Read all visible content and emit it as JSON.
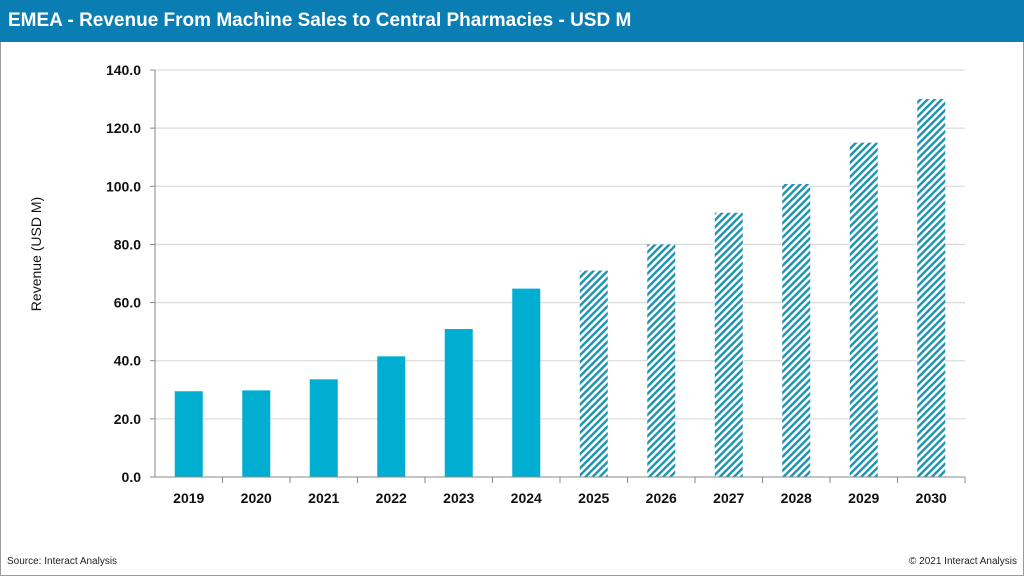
{
  "header": {
    "title": "EMEA - Revenue From Machine Sales to Central Pharmacies - USD M"
  },
  "footer": {
    "source": "Source: Interact Analysis",
    "copyright": "© 2021 Interact Analysis"
  },
  "colors": {
    "header": "#0a7db3",
    "bar": "#00aed2",
    "hatch": "#1a93b0"
  },
  "chart_data": {
    "type": "bar",
    "title": "EMEA - Revenue From Machine Sales to Central Pharmacies - USD M",
    "xlabel": "",
    "ylabel": "Revenue (USD M)",
    "ylim": [
      0,
      140
    ],
    "yticks": [
      "0.0",
      "20.0",
      "40.0",
      "60.0",
      "80.0",
      "100.0",
      "120.0",
      "140.0"
    ],
    "grid": true,
    "categories": [
      "2019",
      "2020",
      "2021",
      "2022",
      "2023",
      "2024",
      "2025",
      "2026",
      "2027",
      "2028",
      "2029",
      "2030"
    ],
    "values": [
      29.5,
      29.8,
      33.6,
      41.5,
      50.9,
      64.8,
      71.0,
      80.0,
      90.9,
      100.8,
      115.0,
      130.0
    ],
    "forecast_hatched_from": "2025"
  }
}
